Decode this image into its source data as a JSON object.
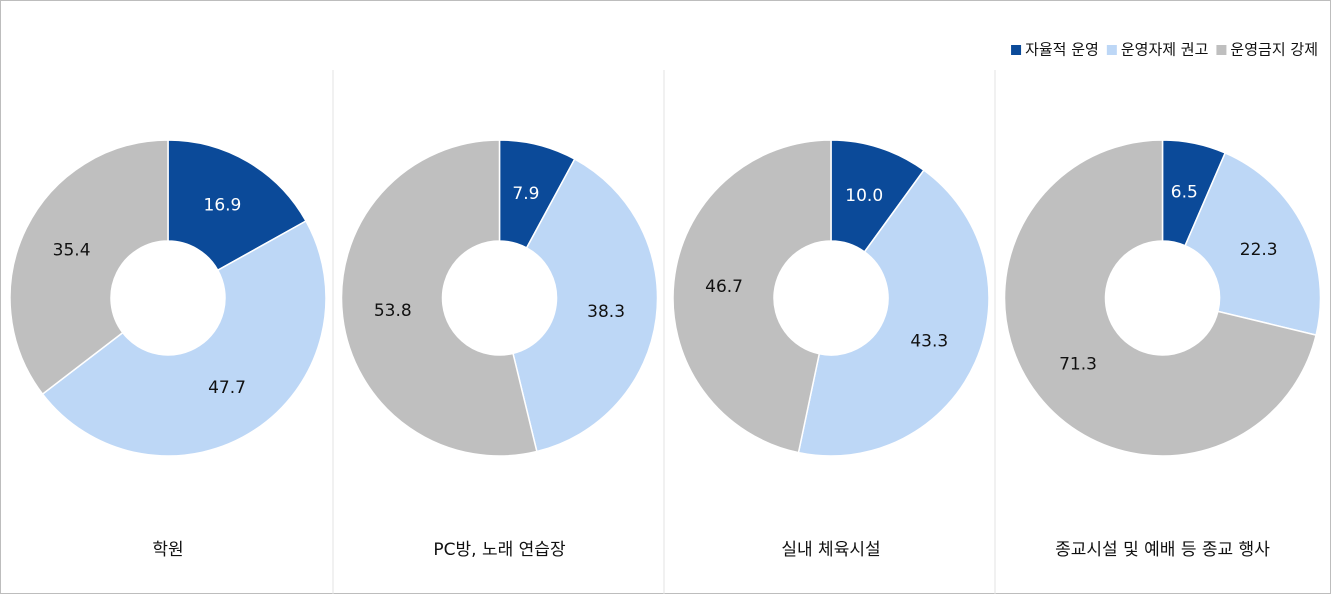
{
  "chart_data": {
    "type": "donut",
    "categories": [
      "학원",
      "PC방, 노래 연습장",
      "실내 체육시설",
      "종교시설 및 예배 등 종교 행사"
    ],
    "series": [
      {
        "name": "자율적 운영",
        "color": "#0b4a99",
        "values": [
          16.9,
          7.9,
          10.0,
          6.5
        ],
        "value_labels": [
          "16.9",
          "7.9",
          "10.0",
          "6.5"
        ]
      },
      {
        "name": "운영자제 권고",
        "color": "#bdd7f6",
        "values": [
          47.7,
          38.3,
          43.3,
          22.3
        ],
        "value_labels": [
          "47.7",
          "38.3",
          "43.3",
          "22.3"
        ]
      },
      {
        "name": "운영금지 강제",
        "color": "#bfbfbf",
        "values": [
          35.4,
          53.8,
          46.7,
          71.3
        ],
        "value_labels": [
          "35.4",
          "53.8",
          "46.7",
          "71.3"
        ]
      }
    ],
    "legend": "top-right"
  }
}
